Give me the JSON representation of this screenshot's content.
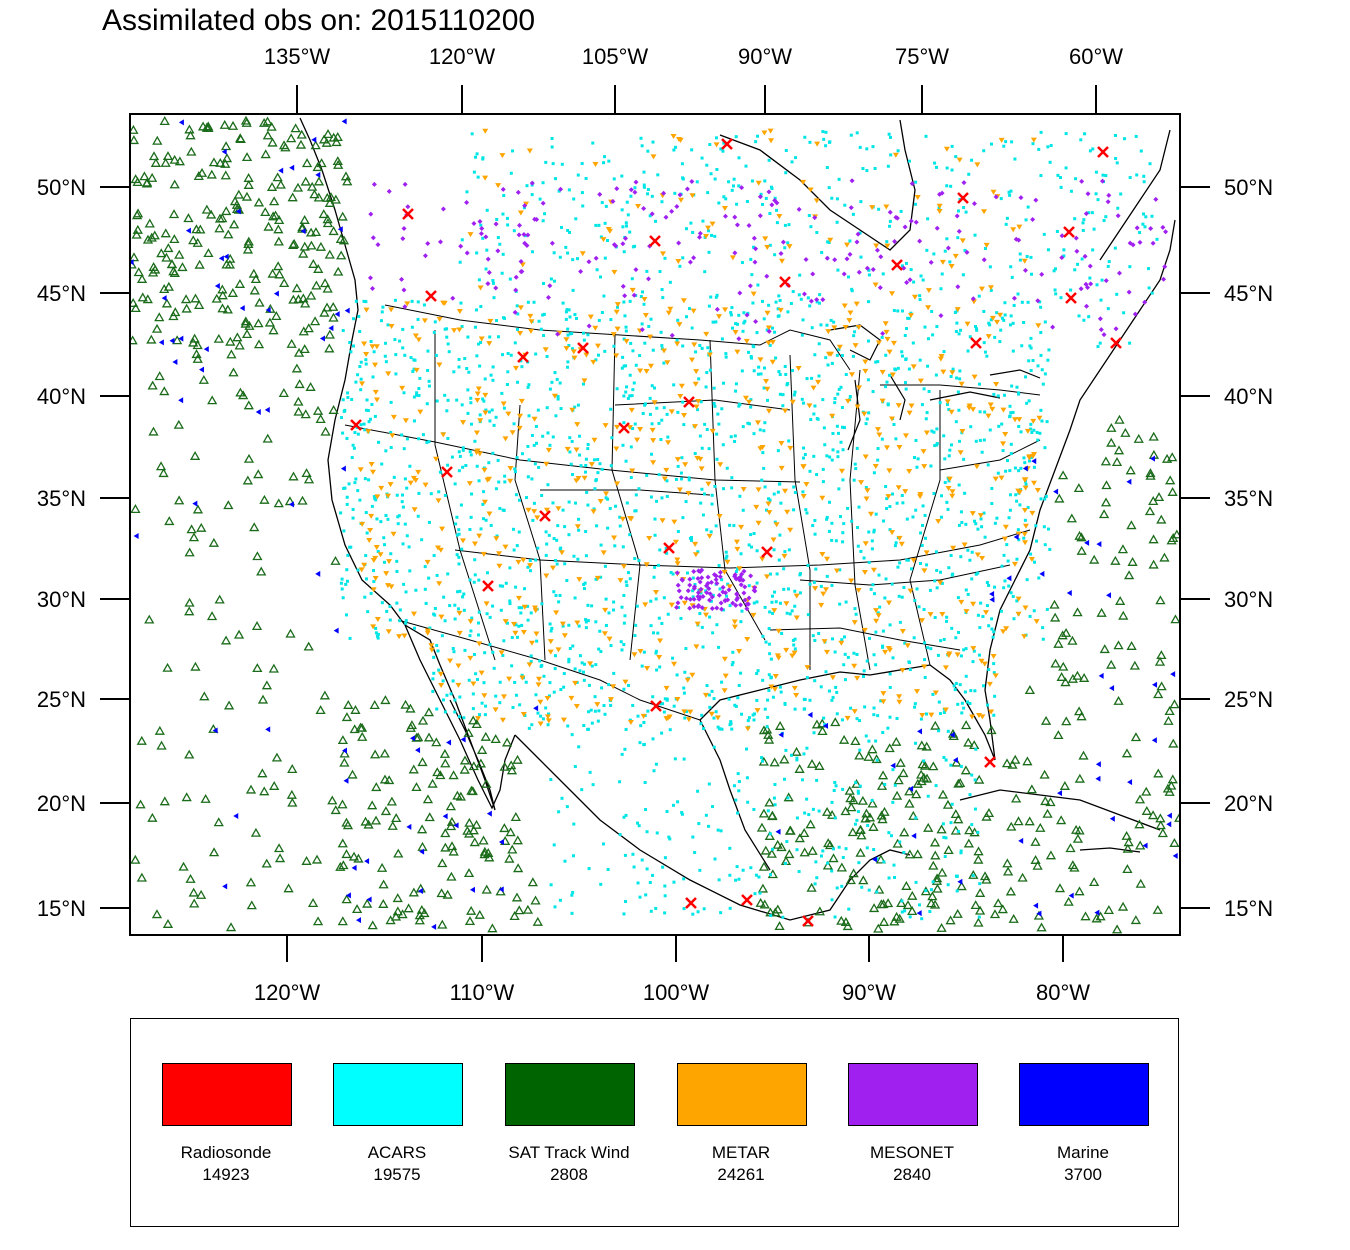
{
  "title": "Assimilated obs on: 2015110200",
  "top_lon_labels": [
    "135°W",
    "120°W",
    "105°W",
    "90°W",
    "75°W",
    "60°W"
  ],
  "bottom_lon_labels": [
    "120°W",
    "110°W",
    "100°W",
    "90°W",
    "80°W"
  ],
  "lat_labels": [
    "50°N",
    "45°N",
    "40°N",
    "35°N",
    "30°N",
    "25°N",
    "20°N",
    "15°N"
  ],
  "legend": [
    {
      "name": "Radiosonde",
      "count": "14923",
      "color": "#ff0000"
    },
    {
      "name": "ACARS",
      "count": "19575",
      "color": "#00ffff"
    },
    {
      "name": "SAT Track Wind",
      "count": "2808",
      "color": "#006400"
    },
    {
      "name": "METAR",
      "count": "24261",
      "color": "#ffa500"
    },
    {
      "name": "MESONET",
      "count": "2840",
      "color": "#a020f0"
    },
    {
      "name": "Marine",
      "count": "3700",
      "color": "#0000ff"
    }
  ]
}
